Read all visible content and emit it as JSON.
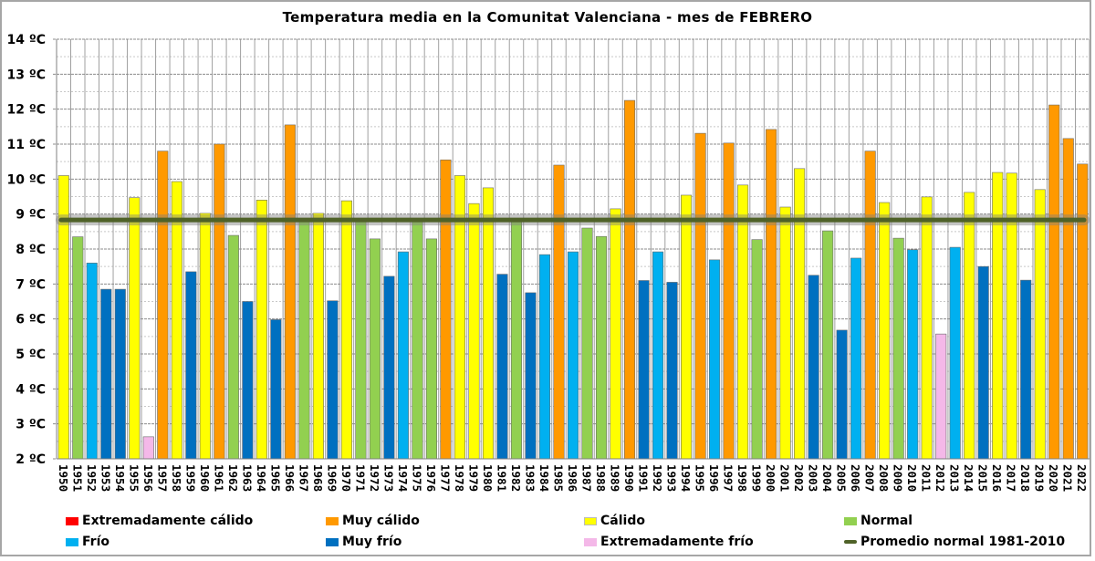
{
  "chart_data": {
    "type": "bar",
    "title": "Temperatura media en la Comunitat Valenciana - mes de FEBRERO",
    "xlabel": "",
    "ylabel": "",
    "ylim": [
      2,
      14
    ],
    "y_ticks": [
      "2 ºC",
      "3 ºC",
      "4 ºC",
      "5 ºC",
      "6 ºC",
      "7 ºC",
      "8 ºC",
      "9 ºC",
      "10 ºC",
      "11 ºC",
      "12 ºC",
      "13 ºC",
      "14 ºC"
    ],
    "grid": true,
    "legend_position": "bottom",
    "categories": [
      "1950",
      "1951",
      "1952",
      "1953",
      "1954",
      "1955",
      "1956",
      "1957",
      "1958",
      "1959",
      "1960",
      "1961",
      "1962",
      "1963",
      "1964",
      "1965",
      "1966",
      "1967",
      "1968",
      "1969",
      "1970",
      "1971",
      "1972",
      "1973",
      "1974",
      "1975",
      "1976",
      "1977",
      "1978",
      "1979",
      "1980",
      "1981",
      "1982",
      "1983",
      "1984",
      "1985",
      "1986",
      "1987",
      "1988",
      "1989",
      "1990",
      "1991",
      "1992",
      "1993",
      "1994",
      "1995",
      "1996",
      "1997",
      "1998",
      "1999",
      "2000",
      "2001",
      "2002",
      "2003",
      "2004",
      "2005",
      "2006",
      "2007",
      "2008",
      "2009",
      "2010",
      "2011",
      "2012",
      "2013",
      "2014",
      "2015",
      "2016",
      "2017",
      "2018",
      "2019",
      "2020",
      "2021",
      "2022"
    ],
    "values": [
      10.1,
      8.35,
      7.6,
      6.85,
      6.85,
      9.47,
      2.63,
      10.8,
      9.93,
      7.35,
      9.02,
      11.0,
      8.39,
      6.5,
      9.4,
      5.98,
      11.55,
      8.85,
      9.02,
      6.52,
      9.38,
      8.85,
      8.29,
      7.22,
      7.92,
      8.85,
      8.29,
      10.55,
      10.1,
      9.3,
      9.75,
      7.28,
      8.85,
      6.75,
      7.84,
      10.4,
      7.92,
      8.6,
      8.36,
      9.15,
      12.25,
      7.1,
      7.92,
      7.05,
      9.54,
      11.31,
      7.69,
      11.03,
      9.83,
      8.27,
      11.42,
      9.2,
      10.3,
      7.25,
      8.52,
      5.68,
      7.74,
      10.8,
      9.33,
      8.31,
      7.98,
      9.49,
      5.57,
      8.05,
      9.62,
      7.5,
      10.19,
      10.17,
      7.11,
      9.7,
      12.12,
      11.16,
      10.43
    ],
    "classes": [
      "C",
      "N",
      "F",
      "MF",
      "MF",
      "C",
      "EF",
      "MC",
      "C",
      "MF",
      "C",
      "MC",
      "N",
      "MF",
      "C",
      "MF",
      "MC",
      "N",
      "C",
      "MF",
      "C",
      "N",
      "N",
      "MF",
      "F",
      "N",
      "N",
      "MC",
      "C",
      "C",
      "C",
      "MF",
      "N",
      "MF",
      "F",
      "MC",
      "F",
      "N",
      "N",
      "C",
      "MC",
      "MF",
      "F",
      "MF",
      "C",
      "MC",
      "F",
      "MC",
      "C",
      "N",
      "MC",
      "C",
      "C",
      "MF",
      "N",
      "MF",
      "F",
      "MC",
      "C",
      "N",
      "F",
      "C",
      "EF",
      "F",
      "C",
      "MF",
      "C",
      "C",
      "MF",
      "C",
      "MC",
      "MC",
      "MC"
    ],
    "reference_line": {
      "name": "Promedio normal 1981-2010",
      "value": 8.83,
      "color": "#4f6228"
    },
    "legend": [
      {
        "key": "EC",
        "label": "Extremadamente cálido",
        "color": "#ff0000"
      },
      {
        "key": "MC",
        "label": "Muy cálido",
        "color": "#ff9900"
      },
      {
        "key": "C",
        "label": "Cálido",
        "color": "#ffff00"
      },
      {
        "key": "N",
        "label": "Normal",
        "color": "#92d050"
      },
      {
        "key": "F",
        "label": "Frío",
        "color": "#00b0f0"
      },
      {
        "key": "MF",
        "label": "Muy frío",
        "color": "#0070c0"
      },
      {
        "key": "EF",
        "label": "Extremadamente frío",
        "color": "#f4b8e8"
      },
      {
        "key": "line",
        "label": "Promedio normal 1981-2010",
        "color": "#4f6228"
      }
    ]
  }
}
